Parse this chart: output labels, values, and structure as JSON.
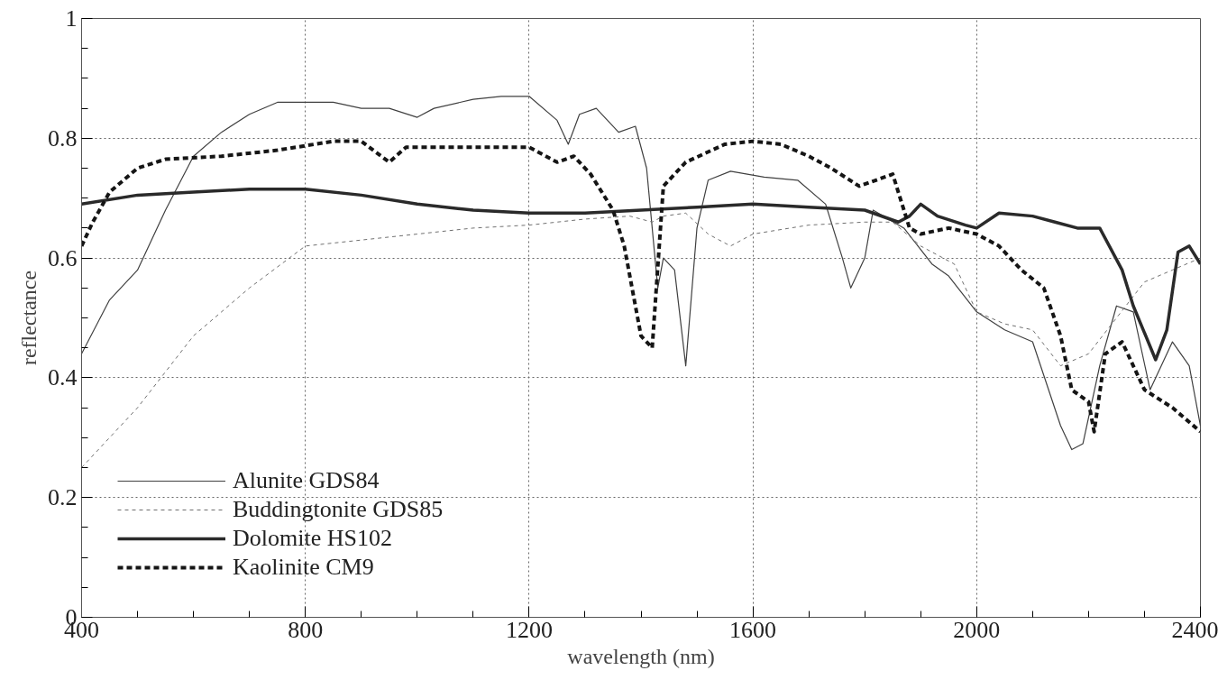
{
  "chart_data": {
    "type": "line",
    "xlabel": "wavelength (nm)",
    "ylabel": "reflectance",
    "xlim": [
      400,
      2400
    ],
    "ylim": [
      0,
      1
    ],
    "xticks": [
      400,
      800,
      1200,
      1600,
      2000,
      2400
    ],
    "yticks": [
      0,
      0.2,
      0.4,
      0.6,
      0.8,
      1
    ],
    "grid": true,
    "legend": "bottom left",
    "marker": "none",
    "series": [
      {
        "name": "Alunite GDS84",
        "color": "#404040",
        "line_style": "solid",
        "x": [
          400,
          450,
          500,
          550,
          600,
          650,
          700,
          750,
          800,
          850,
          900,
          950,
          1000,
          1030,
          1100,
          1150,
          1200,
          1250,
          1270,
          1290,
          1320,
          1360,
          1390,
          1410,
          1430,
          1440,
          1460,
          1480,
          1500,
          1520,
          1560,
          1620,
          1680,
          1730,
          1760,
          1775,
          1800,
          1815,
          1870,
          1920,
          1950,
          2000,
          2050,
          2100,
          2150,
          2170,
          2190,
          2220,
          2250,
          2280,
          2310,
          2350,
          2380,
          2400
        ],
        "values": [
          0.44,
          0.53,
          0.58,
          0.68,
          0.77,
          0.81,
          0.84,
          0.86,
          0.86,
          0.86,
          0.85,
          0.85,
          0.835,
          0.85,
          0.865,
          0.87,
          0.87,
          0.83,
          0.79,
          0.84,
          0.85,
          0.81,
          0.82,
          0.75,
          0.55,
          0.6,
          0.58,
          0.42,
          0.65,
          0.73,
          0.745,
          0.735,
          0.73,
          0.69,
          0.6,
          0.55,
          0.6,
          0.68,
          0.65,
          0.59,
          0.57,
          0.51,
          0.48,
          0.46,
          0.32,
          0.28,
          0.29,
          0.42,
          0.52,
          0.51,
          0.38,
          0.46,
          0.42,
          0.32
        ]
      },
      {
        "name": "Buddingtonite GDS85",
        "color": "#707070",
        "line_style": "dashed",
        "x": [
          400,
          500,
          600,
          700,
          800,
          900,
          1000,
          1100,
          1200,
          1300,
          1380,
          1420,
          1440,
          1480,
          1520,
          1560,
          1600,
          1700,
          1800,
          1850,
          1900,
          1960,
          2000,
          2050,
          2100,
          2150,
          2200,
          2250,
          2300,
          2350,
          2400
        ],
        "values": [
          0.25,
          0.35,
          0.47,
          0.55,
          0.62,
          0.63,
          0.64,
          0.65,
          0.655,
          0.665,
          0.67,
          0.66,
          0.67,
          0.675,
          0.64,
          0.62,
          0.64,
          0.655,
          0.66,
          0.66,
          0.62,
          0.59,
          0.51,
          0.49,
          0.48,
          0.42,
          0.44,
          0.5,
          0.56,
          0.58,
          0.6
        ]
      },
      {
        "name": "Dolomite HS102",
        "color": "#2a2a2a",
        "line_style": "solid",
        "x": [
          400,
          500,
          600,
          700,
          800,
          900,
          1000,
          1100,
          1200,
          1300,
          1400,
          1500,
          1600,
          1700,
          1800,
          1860,
          1880,
          1900,
          1930,
          1980,
          2000,
          2040,
          2100,
          2140,
          2180,
          2220,
          2260,
          2280,
          2320,
          2340,
          2360,
          2380,
          2400
        ],
        "values": [
          0.69,
          0.705,
          0.71,
          0.715,
          0.715,
          0.705,
          0.69,
          0.68,
          0.675,
          0.675,
          0.68,
          0.685,
          0.69,
          0.685,
          0.68,
          0.66,
          0.67,
          0.69,
          0.67,
          0.655,
          0.65,
          0.675,
          0.67,
          0.66,
          0.65,
          0.65,
          0.58,
          0.52,
          0.43,
          0.48,
          0.61,
          0.62,
          0.59
        ]
      },
      {
        "name": "Kaolinite CM9",
        "color": "#151515",
        "line_style": "dashed",
        "x": [
          400,
          420,
          450,
          500,
          550,
          650,
          750,
          850,
          900,
          950,
          980,
          1100,
          1200,
          1250,
          1280,
          1310,
          1350,
          1370,
          1400,
          1420,
          1440,
          1480,
          1550,
          1600,
          1650,
          1700,
          1740,
          1790,
          1820,
          1850,
          1880,
          1900,
          1950,
          2000,
          2040,
          2080,
          2120,
          2150,
          2170,
          2200,
          2210,
          2230,
          2260,
          2300,
          2350,
          2400
        ],
        "values": [
          0.62,
          0.66,
          0.71,
          0.75,
          0.765,
          0.77,
          0.78,
          0.795,
          0.795,
          0.76,
          0.785,
          0.785,
          0.785,
          0.76,
          0.77,
          0.74,
          0.68,
          0.62,
          0.47,
          0.45,
          0.72,
          0.76,
          0.79,
          0.795,
          0.79,
          0.77,
          0.75,
          0.72,
          0.73,
          0.74,
          0.65,
          0.64,
          0.65,
          0.64,
          0.62,
          0.58,
          0.55,
          0.47,
          0.38,
          0.36,
          0.31,
          0.44,
          0.46,
          0.38,
          0.35,
          0.31
        ]
      }
    ]
  }
}
